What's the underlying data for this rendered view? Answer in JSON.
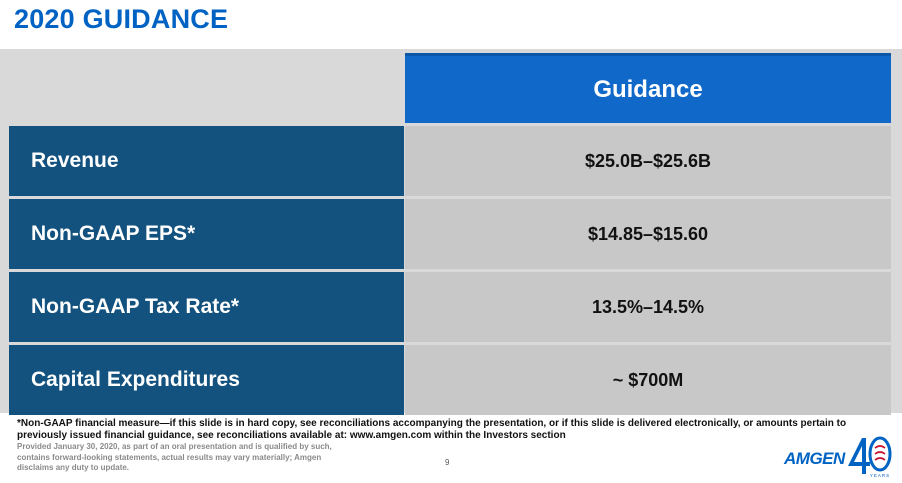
{
  "slide": {
    "title": "2020 GUIDANCE",
    "page_number": "9"
  },
  "table": {
    "header": "Guidance",
    "rows": [
      {
        "label": "Revenue",
        "value": "$25.0B–$25.6B"
      },
      {
        "label": "Non-GAAP EPS*",
        "value": "$14.85–$15.60"
      },
      {
        "label": "Non-GAAP Tax Rate*",
        "value": "13.5%–14.5%"
      },
      {
        "label": "Capital Expenditures",
        "value": "~ $700M"
      }
    ]
  },
  "footer": {
    "footnote": "*Non-GAAP financial measure—if this slide is in hard copy, see reconciliations accompanying the presentation, or if this slide is delivered electronically, or amounts pertain to previously issued financial guidance, see reconciliations available at: www.amgen.com within the Investors section",
    "disclaimer": "Provided January 30, 2020, as part of an oral presentation and is qualified by such, contains forward-looking statements, actual results may vary materially; Amgen disclaims any duty to update."
  },
  "logo": {
    "wordmark": "AMGEN",
    "anniversary": "40",
    "years": "YEARS",
    "color": "#0063c3",
    "accent_color": "#c8102e"
  },
  "colors": {
    "title": "#0063c3",
    "header_bg": "#1068c8",
    "label_bg": "#13527e",
    "value_bg": "#c8c8c8",
    "band_bg": "#d9d9d9"
  }
}
